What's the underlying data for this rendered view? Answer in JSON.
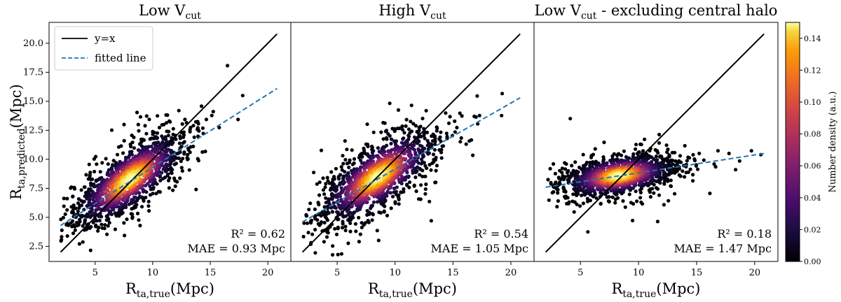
{
  "chart_data": [
    {
      "type": "scatter",
      "title": "Low V_cut",
      "title_main": "Low V",
      "title_sub": "cut",
      "title_suffix": "",
      "xlabel": "R_ta,true(Mpc)",
      "ylabel": "R_ta,predicted(Mpc)",
      "xlim": [
        1,
        22
      ],
      "ylim": [
        1.2,
        21.8
      ],
      "xticks": [
        5,
        10,
        15,
        20
      ],
      "yticks": [
        2.5,
        5.0,
        7.5,
        10.0,
        12.5,
        15.0,
        17.5,
        20.0
      ],
      "series": [
        {
          "name": "y=x",
          "kind": "line",
          "color": "#000000",
          "x": [
            2,
            20.8
          ],
          "y": [
            2,
            20.8
          ]
        },
        {
          "name": "fitted line",
          "kind": "dashed-line",
          "color": "#1f77b4",
          "x": [
            2,
            20.8
          ],
          "y": [
            4.3,
            16.1
          ]
        },
        {
          "name": "halos",
          "kind": "density-scatter",
          "center_x": 8.0,
          "center_y": 8.3,
          "spread_x": 2.4,
          "slope": 0.62,
          "scatter_y": 1.25,
          "x_range": [
            2.0,
            20.8
          ]
        }
      ],
      "annotations": [
        {
          "name": "r2",
          "text": "R² = 0.62"
        },
        {
          "name": "mae",
          "text": "MAE = 0.93 Mpc"
        }
      ],
      "legend": {
        "placement": "top-left",
        "entries": [
          "y=x",
          "fitted line"
        ]
      }
    },
    {
      "type": "scatter",
      "title": "High V_cut",
      "title_main": "High V",
      "title_sub": "cut",
      "title_suffix": "",
      "xlabel": "R_ta,true(Mpc)",
      "xlim": [
        1,
        22
      ],
      "ylim": [
        1.2,
        21.8
      ],
      "xticks": [
        5,
        10,
        15,
        20
      ],
      "series": [
        {
          "name": "y=x",
          "kind": "line",
          "color": "#000000",
          "x": [
            2,
            20.8
          ],
          "y": [
            2,
            20.8
          ]
        },
        {
          "name": "fitted line",
          "kind": "dashed-line",
          "color": "#1f77b4",
          "x": [
            2,
            20.8
          ],
          "y": [
            4.6,
            15.3
          ]
        },
        {
          "name": "halos",
          "kind": "density-scatter",
          "center_x": 8.5,
          "center_y": 8.5,
          "spread_x": 2.5,
          "slope": 0.57,
          "scatter_y": 1.35,
          "x_range": [
            2.0,
            20.8
          ]
        }
      ],
      "annotations": [
        {
          "name": "r2",
          "text": "R² = 0.54"
        },
        {
          "name": "mae",
          "text": "MAE = 1.05 Mpc"
        }
      ]
    },
    {
      "type": "scatter",
      "title": "Low V_cut - excluding central halo",
      "title_main": "Low V",
      "title_sub": "cut",
      "title_suffix": " - excluding central halo",
      "xlabel": "R_ta,true(Mpc)",
      "xlim": [
        1,
        22
      ],
      "ylim": [
        1.2,
        21.8
      ],
      "xticks": [
        5,
        10,
        15,
        20
      ],
      "series": [
        {
          "name": "y=x",
          "kind": "line",
          "color": "#000000",
          "x": [
            2,
            20.8
          ],
          "y": [
            2,
            20.8
          ]
        },
        {
          "name": "fitted line",
          "kind": "dashed-line",
          "color": "#1f77b4",
          "x": [
            2,
            20.8
          ],
          "y": [
            7.6,
            10.5
          ]
        },
        {
          "name": "halos",
          "kind": "density-scatter",
          "center_x": 8.3,
          "center_y": 8.6,
          "spread_x": 2.4,
          "slope": 0.15,
          "scatter_y": 0.8,
          "x_range": [
            2.0,
            20.8
          ]
        }
      ],
      "annotations": [
        {
          "name": "r2",
          "text": "R² = 0.18"
        },
        {
          "name": "mae",
          "text": "MAE = 1.47 Mpc"
        }
      ]
    }
  ],
  "colorbar": {
    "label": "Number density (a.u.)",
    "colormap": "inferno",
    "range": [
      0,
      0.15
    ],
    "ticks": [
      "0.00",
      "0.02",
      "0.04",
      "0.06",
      "0.08",
      "0.10",
      "0.12",
      "0.14"
    ],
    "tick_values": [
      0,
      0.02,
      0.04,
      0.06,
      0.08,
      0.1,
      0.12,
      0.14
    ]
  },
  "labels": {
    "y_axis_main": "R",
    "y_axis_sub": "ta,predicted",
    "y_axis_unit": "(Mpc)",
    "x_axis_main": "R",
    "x_axis_sub": "ta,true",
    "x_axis_unit": "(Mpc)",
    "legend_yx": "y=x",
    "legend_fit": "fitted line"
  },
  "colors": {
    "identity_line": "#000000",
    "fit_line": "#1f77b4",
    "background": "#ffffff"
  }
}
